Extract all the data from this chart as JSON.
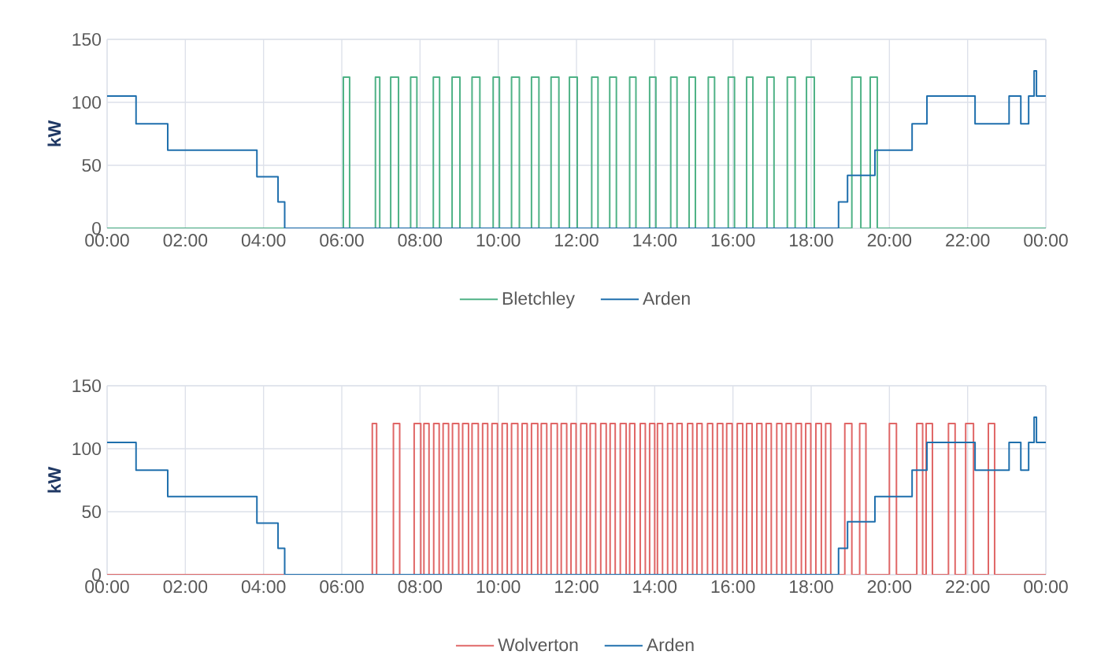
{
  "chart_data": [
    {
      "type": "step",
      "ylabel": "kW",
      "xlim": [
        0,
        24
      ],
      "ylim": [
        0,
        150
      ],
      "yticks": [
        0,
        50,
        100,
        150
      ],
      "grid": true,
      "legend": "bottom",
      "xticks": [
        {
          "value": 0,
          "label": "00:00"
        },
        {
          "value": 2,
          "label": "02:00"
        },
        {
          "value": 4,
          "label": "04:00"
        },
        {
          "value": 6,
          "label": "06:00"
        },
        {
          "value": 8,
          "label": "08:00"
        },
        {
          "value": 10,
          "label": "10:00"
        },
        {
          "value": 12,
          "label": "12:00"
        },
        {
          "value": 14,
          "label": "14:00"
        },
        {
          "value": 16,
          "label": "16:00"
        },
        {
          "value": 18,
          "label": "18:00"
        },
        {
          "value": 20,
          "label": "20:00"
        },
        {
          "value": 22,
          "label": "22:00"
        },
        {
          "value": 24,
          "label": "00:00"
        }
      ],
      "series": [
        {
          "name": "Bletchley",
          "color": "#4fb286",
          "x": [
            0,
            6.04,
            6.2,
            6.86,
            6.97,
            7.25,
            7.45,
            7.76,
            7.92,
            8.34,
            8.5,
            8.82,
            9.02,
            9.33,
            9.53,
            9.87,
            10.03,
            10.34,
            10.54,
            10.85,
            11.04,
            11.35,
            11.55,
            11.82,
            12.02,
            12.39,
            12.55,
            12.85,
            13.02,
            13.36,
            13.52,
            13.87,
            14.03,
            14.41,
            14.57,
            14.88,
            15.04,
            15.37,
            15.53,
            15.88,
            16.04,
            16.35,
            16.51,
            16.87,
            17.05,
            17.39,
            17.59,
            17.88,
            18.08,
            19.04,
            19.27,
            19.51,
            19.69,
            24
          ],
          "values": [
            0,
            120,
            0,
            120,
            0,
            120,
            0,
            120,
            0,
            120,
            0,
            120,
            0,
            120,
            0,
            120,
            0,
            120,
            0,
            120,
            0,
            120,
            0,
            120,
            0,
            120,
            0,
            120,
            0,
            120,
            0,
            120,
            0,
            120,
            0,
            120,
            0,
            120,
            0,
            120,
            0,
            120,
            0,
            120,
            0,
            120,
            0,
            120,
            0,
            120,
            0,
            120,
            0,
            0
          ]
        },
        {
          "name": "Arden",
          "color": "#1f6fad",
          "x": [
            0,
            0.74,
            1.55,
            3.83,
            4.37,
            4.54,
            18.7,
            18.93,
            19.63,
            20.58,
            20.96,
            22.19,
            23.06,
            23.36,
            23.56,
            23.7,
            23.76,
            24
          ],
          "values": [
            105,
            83,
            62,
            41,
            21,
            0,
            21,
            42,
            62,
            83,
            105,
            83,
            105,
            83,
            105,
            125,
            105,
            105
          ]
        }
      ]
    },
    {
      "type": "step",
      "ylabel": "kW",
      "xlim": [
        0,
        24
      ],
      "ylim": [
        0,
        150
      ],
      "yticks": [
        0,
        50,
        100,
        150
      ],
      "grid": true,
      "legend": "bottom",
      "xticks": [
        {
          "value": 0,
          "label": "00:00"
        },
        {
          "value": 2,
          "label": "02:00"
        },
        {
          "value": 4,
          "label": "04:00"
        },
        {
          "value": 6,
          "label": "06:00"
        },
        {
          "value": 8,
          "label": "08:00"
        },
        {
          "value": 10,
          "label": "10:00"
        },
        {
          "value": 12,
          "label": "12:00"
        },
        {
          "value": 14,
          "label": "14:00"
        },
        {
          "value": 16,
          "label": "16:00"
        },
        {
          "value": 18,
          "label": "18:00"
        },
        {
          "value": 20,
          "label": "20:00"
        },
        {
          "value": 22,
          "label": "22:00"
        },
        {
          "value": 24,
          "label": "00:00"
        }
      ],
      "series": [
        {
          "name": "Wolverton",
          "color": "#e06666",
          "x": [
            0,
            6.78,
            6.89,
            7.32,
            7.48,
            7.85,
            8.02,
            8.1,
            8.23,
            8.35,
            8.49,
            8.59,
            8.73,
            8.83,
            8.99,
            9.09,
            9.24,
            9.33,
            9.49,
            9.6,
            9.73,
            9.84,
            9.98,
            10.1,
            10.23,
            10.34,
            10.5,
            10.61,
            10.74,
            10.85,
            11.01,
            11.1,
            11.24,
            11.35,
            11.51,
            11.61,
            11.75,
            11.86,
            11.99,
            12.11,
            12.26,
            12.35,
            12.49,
            12.62,
            12.76,
            12.86,
            12.99,
            13.12,
            13.27,
            13.36,
            13.49,
            13.63,
            13.76,
            13.87,
            14.0,
            14.07,
            14.2,
            14.33,
            14.46,
            14.57,
            14.7,
            14.84,
            14.97,
            15.08,
            15.21,
            15.35,
            15.48,
            15.6,
            15.74,
            15.84,
            15.98,
            16.11,
            16.25,
            16.35,
            16.49,
            16.61,
            16.74,
            16.85,
            16.98,
            17.12,
            17.25,
            17.36,
            17.49,
            17.61,
            17.75,
            17.86,
            17.99,
            18.12,
            18.26,
            18.37,
            18.5,
            18.86,
            19.04,
            19.24,
            19.4,
            20.0,
            20.18,
            20.7,
            20.85,
            20.94,
            21.1,
            21.51,
            21.68,
            21.95,
            22.15,
            22.53,
            22.69,
            24
          ],
          "values": [
            0,
            120,
            0,
            120,
            0,
            120,
            0,
            120,
            0,
            120,
            0,
            120,
            0,
            120,
            0,
            120,
            0,
            120,
            0,
            120,
            0,
            120,
            0,
            120,
            0,
            120,
            0,
            120,
            0,
            120,
            0,
            120,
            0,
            120,
            0,
            120,
            0,
            120,
            0,
            120,
            0,
            120,
            0,
            120,
            0,
            120,
            0,
            120,
            0,
            120,
            0,
            120,
            0,
            120,
            0,
            120,
            0,
            120,
            0,
            120,
            0,
            120,
            0,
            120,
            0,
            120,
            0,
            120,
            0,
            120,
            0,
            120,
            0,
            120,
            0,
            120,
            0,
            120,
            0,
            120,
            0,
            120,
            0,
            120,
            0,
            120,
            0,
            120,
            0,
            120,
            0,
            120,
            0,
            120,
            0,
            120,
            0,
            120,
            0,
            120,
            0,
            120,
            0,
            120,
            0,
            120,
            0,
            0
          ]
        },
        {
          "name": "Arden",
          "color": "#1f6fad",
          "x": [
            0,
            0.74,
            1.55,
            3.83,
            4.37,
            4.54,
            18.7,
            18.93,
            19.63,
            20.58,
            20.96,
            22.19,
            23.06,
            23.36,
            23.56,
            23.7,
            23.76,
            24
          ],
          "values": [
            105,
            83,
            62,
            41,
            21,
            0,
            21,
            42,
            62,
            83,
            105,
            83,
            105,
            83,
            105,
            125,
            105,
            105
          ]
        }
      ]
    }
  ]
}
